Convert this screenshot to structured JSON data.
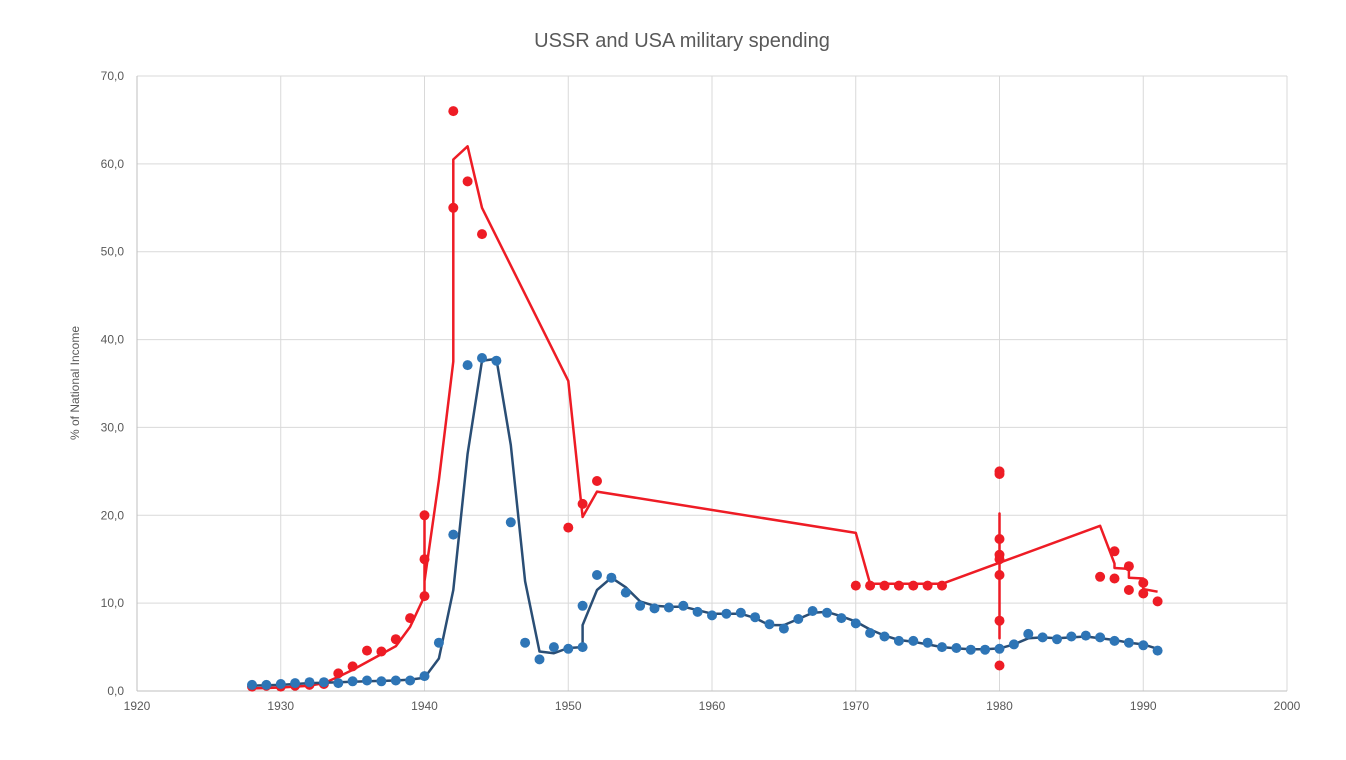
{
  "chart_data": {
    "type": "scatter",
    "title": "USSR and USA military spending",
    "xlabel": "",
    "ylabel": "% of National Income",
    "xlim": [
      1920,
      2000
    ],
    "ylim": [
      0,
      70
    ],
    "x_ticks": [
      1920,
      1930,
      1940,
      1950,
      1960,
      1970,
      1980,
      1990,
      2000
    ],
    "y_ticks": [
      0,
      10,
      20,
      30,
      40,
      50,
      60,
      70
    ],
    "x_tick_labels": [
      "1920",
      "1930",
      "1940",
      "1950",
      "1960",
      "1970",
      "1980",
      "1990",
      "2000"
    ],
    "y_tick_labels": [
      "0,0",
      "10,0",
      "20,0",
      "30,0",
      "40,0",
      "50,0",
      "60,0",
      "70,0"
    ],
    "grid": true,
    "legend": "none",
    "series": [
      {
        "color": "#ee1c25",
        "points": [
          [
            1928,
            0.5
          ],
          [
            1929,
            0.6
          ],
          [
            1930,
            0.5
          ],
          [
            1931,
            0.6
          ],
          [
            1932,
            0.7
          ],
          [
            1933,
            0.8
          ],
          [
            1934,
            2.0
          ],
          [
            1935,
            2.8
          ],
          [
            1936,
            4.6
          ],
          [
            1937,
            4.5
          ],
          [
            1938,
            5.9
          ],
          [
            1939,
            8.3
          ],
          [
            1940,
            20.0
          ],
          [
            1940,
            15.0
          ],
          [
            1940,
            10.8
          ],
          [
            1942,
            66.0
          ],
          [
            1942,
            55.0
          ],
          [
            1943,
            58.0
          ],
          [
            1944,
            52.0
          ],
          [
            1950,
            18.6
          ],
          [
            1951,
            21.3
          ],
          [
            1952,
            23.9
          ],
          [
            1970,
            12.0
          ],
          [
            1971,
            12.0
          ],
          [
            1972,
            12.0
          ],
          [
            1973,
            12.0
          ],
          [
            1974,
            12.0
          ],
          [
            1975,
            12.0
          ],
          [
            1976,
            12.0
          ],
          [
            1980,
            25.0
          ],
          [
            1980,
            24.7
          ],
          [
            1980,
            17.3
          ],
          [
            1980,
            15.5
          ],
          [
            1980,
            15.0
          ],
          [
            1980,
            13.2
          ],
          [
            1980,
            8.0
          ],
          [
            1980,
            2.9
          ],
          [
            1987,
            13.0
          ],
          [
            1988,
            15.9
          ],
          [
            1988,
            12.8
          ],
          [
            1989,
            14.2
          ],
          [
            1989,
            11.5
          ],
          [
            1990,
            12.3
          ],
          [
            1990,
            11.1
          ],
          [
            1991,
            10.2
          ]
        ],
        "trend": [
          [
            1928,
            0.3
          ],
          [
            1930,
            0.4
          ],
          [
            1932,
            0.6
          ],
          [
            1933,
            0.9
          ],
          [
            1934,
            1.6
          ],
          [
            1935,
            2.4
          ],
          [
            1936,
            3.3
          ],
          [
            1937,
            4.2
          ],
          [
            1938,
            5.1
          ],
          [
            1939,
            7.3
          ],
          [
            1940,
            10.8
          ],
          [
            1940,
            20.0
          ],
          [
            1940,
            12.5
          ],
          [
            1941,
            24.0
          ],
          [
            1942,
            37.5
          ],
          [
            1942,
            60.5
          ],
          [
            1943,
            62.0
          ],
          [
            1944,
            55.0
          ],
          [
            1950,
            35.3
          ],
          [
            1951,
            19.8
          ],
          [
            1952,
            22.7
          ],
          [
            1970,
            18.0
          ],
          [
            1971,
            12.2
          ],
          [
            1976,
            12.2
          ],
          [
            1980,
            14.6
          ],
          [
            1980,
            20.2
          ],
          [
            1980,
            6.0
          ],
          [
            1980,
            14.6
          ],
          [
            1987,
            18.8
          ],
          [
            1988,
            14.5
          ],
          [
            1988,
            14.0
          ],
          [
            1989,
            13.9
          ],
          [
            1989,
            12.9
          ],
          [
            1990,
            12.8
          ],
          [
            1990,
            11.6
          ],
          [
            1991,
            11.3
          ]
        ]
      },
      {
        "color": "#2e75b6",
        "line_color": "#2a4e75",
        "points": [
          [
            1928,
            0.7
          ],
          [
            1929,
            0.7
          ],
          [
            1930,
            0.8
          ],
          [
            1931,
            0.9
          ],
          [
            1932,
            1.0
          ],
          [
            1933,
            1.0
          ],
          [
            1934,
            0.9
          ],
          [
            1935,
            1.1
          ],
          [
            1936,
            1.2
          ],
          [
            1937,
            1.1
          ],
          [
            1938,
            1.2
          ],
          [
            1939,
            1.2
          ],
          [
            1940,
            1.7
          ],
          [
            1941,
            5.5
          ],
          [
            1942,
            17.8
          ],
          [
            1943,
            37.1
          ],
          [
            1944,
            37.9
          ],
          [
            1945,
            37.6
          ],
          [
            1946,
            19.2
          ],
          [
            1947,
            5.5
          ],
          [
            1948,
            3.6
          ],
          [
            1949,
            5.0
          ],
          [
            1950,
            4.8
          ],
          [
            1951,
            5.0
          ],
          [
            1951,
            9.7
          ],
          [
            1952,
            13.2
          ],
          [
            1953,
            12.9
          ],
          [
            1954,
            11.2
          ],
          [
            1955,
            9.7
          ],
          [
            1956,
            9.4
          ],
          [
            1957,
            9.5
          ],
          [
            1958,
            9.7
          ],
          [
            1959,
            9.0
          ],
          [
            1960,
            8.6
          ],
          [
            1961,
            8.8
          ],
          [
            1962,
            8.9
          ],
          [
            1963,
            8.4
          ],
          [
            1964,
            7.6
          ],
          [
            1965,
            7.1
          ],
          [
            1966,
            8.2
          ],
          [
            1967,
            9.1
          ],
          [
            1968,
            8.9
          ],
          [
            1969,
            8.3
          ],
          [
            1970,
            7.7
          ],
          [
            1971,
            6.6
          ],
          [
            1972,
            6.2
          ],
          [
            1973,
            5.7
          ],
          [
            1974,
            5.7
          ],
          [
            1975,
            5.5
          ],
          [
            1976,
            5.0
          ],
          [
            1977,
            4.9
          ],
          [
            1978,
            4.7
          ],
          [
            1979,
            4.7
          ],
          [
            1980,
            4.8
          ],
          [
            1981,
            5.3
          ],
          [
            1982,
            6.5
          ],
          [
            1983,
            6.1
          ],
          [
            1984,
            5.9
          ],
          [
            1985,
            6.2
          ],
          [
            1986,
            6.3
          ],
          [
            1987,
            6.1
          ],
          [
            1988,
            5.7
          ],
          [
            1989,
            5.5
          ],
          [
            1990,
            5.2
          ],
          [
            1991,
            4.6
          ]
        ],
        "trend": [
          [
            1928,
            0.6
          ],
          [
            1929,
            0.65
          ],
          [
            1930,
            0.7
          ],
          [
            1931,
            0.8
          ],
          [
            1932,
            0.9
          ],
          [
            1933,
            0.95
          ],
          [
            1934,
            1.0
          ],
          [
            1935,
            1.05
          ],
          [
            1936,
            1.1
          ],
          [
            1937,
            1.15
          ],
          [
            1938,
            1.2
          ],
          [
            1939,
            1.3
          ],
          [
            1940,
            1.5
          ],
          [
            1941,
            3.7
          ],
          [
            1942,
            11.5
          ],
          [
            1943,
            27.0
          ],
          [
            1944,
            37.6
          ],
          [
            1945,
            37.8
          ],
          [
            1946,
            28.0
          ],
          [
            1947,
            12.5
          ],
          [
            1948,
            4.5
          ],
          [
            1949,
            4.3
          ],
          [
            1950,
            4.9
          ],
          [
            1951,
            5.0
          ],
          [
            1951,
            7.5
          ],
          [
            1952,
            11.5
          ],
          [
            1953,
            12.9
          ],
          [
            1954,
            11.8
          ],
          [
            1955,
            10.2
          ],
          [
            1956,
            9.7
          ],
          [
            1957,
            9.6
          ],
          [
            1958,
            9.6
          ],
          [
            1959,
            9.2
          ],
          [
            1960,
            8.8
          ],
          [
            1961,
            8.8
          ],
          [
            1962,
            8.8
          ],
          [
            1963,
            8.3
          ],
          [
            1964,
            7.5
          ],
          [
            1965,
            7.5
          ],
          [
            1966,
            8.2
          ],
          [
            1967,
            8.9
          ],
          [
            1968,
            9.0
          ],
          [
            1969,
            8.5
          ],
          [
            1970,
            7.9
          ],
          [
            1971,
            7.0
          ],
          [
            1972,
            6.3
          ],
          [
            1973,
            5.8
          ],
          [
            1974,
            5.6
          ],
          [
            1975,
            5.3
          ],
          [
            1976,
            5.0
          ],
          [
            1977,
            4.85
          ],
          [
            1978,
            4.75
          ],
          [
            1979,
            4.75
          ],
          [
            1980,
            4.85
          ],
          [
            1981,
            5.3
          ],
          [
            1982,
            6.0
          ],
          [
            1983,
            6.1
          ],
          [
            1984,
            6.0
          ],
          [
            1985,
            6.1
          ],
          [
            1986,
            6.2
          ],
          [
            1987,
            6.0
          ],
          [
            1988,
            5.8
          ],
          [
            1989,
            5.5
          ],
          [
            1990,
            5.3
          ],
          [
            1991,
            4.8
          ]
        ]
      }
    ]
  }
}
